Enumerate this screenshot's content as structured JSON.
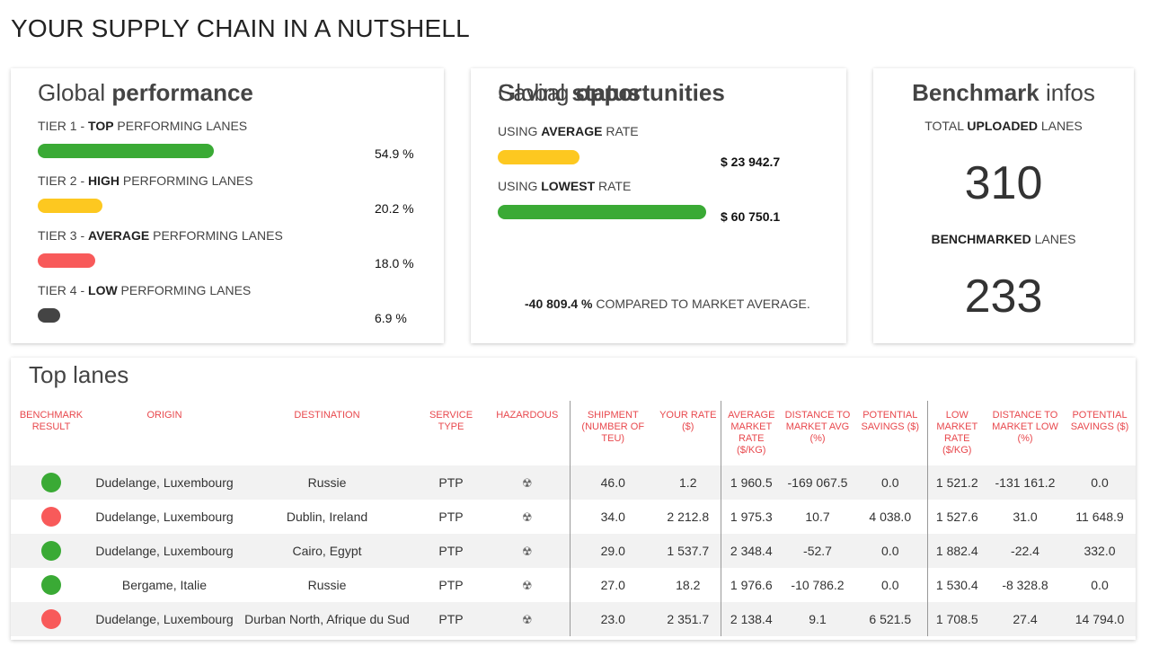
{
  "page_title": "YOUR SUPPLY CHAIN IN A NUTSHELL",
  "colors": {
    "green": "#3aaa35",
    "yellow": "#fdc820",
    "red": "#f85a5a",
    "dark": "#444444",
    "header_red": "#e8484d"
  },
  "performance": {
    "title_light": "Global ",
    "title_bold": "performance",
    "tiers": [
      {
        "prefix": "TIER 1 - ",
        "bold": "TOP",
        "suffix": " PERFORMING LANES",
        "value": "54.9 %",
        "level": 54.9,
        "color": "#3aaa35"
      },
      {
        "prefix": "TIER 2 - ",
        "bold": "HIGH",
        "suffix": " PERFORMING LANES",
        "value": "20.2 %",
        "level": 20.2,
        "color": "#fdc820"
      },
      {
        "prefix": "TIER 3 - ",
        "bold": "AVERAGE",
        "suffix": " PERFORMING LANES",
        "value": "18.0 %",
        "level": 18.0,
        "color": "#f85a5a"
      },
      {
        "prefix": "TIER 4 - ",
        "bold": "LOW",
        "suffix": " PERFORMING LANES",
        "value": "6.9 %",
        "level": 6.9,
        "color": "#444444"
      }
    ]
  },
  "saving": {
    "title_light": "Saving ",
    "title_bold": "opportunities",
    "rows": [
      {
        "prefix": "USING ",
        "bold": "AVERAGE",
        "suffix": " RATE",
        "value": "$ 23 942.7",
        "level": 39.4,
        "color": "#fdc820"
      },
      {
        "prefix": "USING ",
        "bold": "LOWEST",
        "suffix": " RATE",
        "value": "$ 60 750.1",
        "level": 100,
        "color": "#3aaa35"
      }
    ],
    "status_title_light": "Global ",
    "status_title_bold": "status",
    "status_value": "-40 809.4 %",
    "status_text": " COMPARED TO MARKET AVERAGE."
  },
  "benchmark": {
    "title_bold": "Benchmark",
    "title_light": " infos",
    "uploaded_prefix": "TOTAL ",
    "uploaded_bold": "UPLOADED",
    "uploaded_suffix": " LANES",
    "uploaded_value": "310",
    "benchmarked_bold": "BENCHMARKED",
    "benchmarked_suffix": " LANES",
    "benchmarked_value": "233"
  },
  "lanes": {
    "title": "Top lanes",
    "headers": [
      "BENCHMARK RESULT",
      "ORIGIN",
      "DESTINATION",
      "SERVICE TYPE",
      "HAZARDOUS",
      "SHIPMENT (NUMBER OF TEU)",
      "YOUR RATE ($)",
      "AVERAGE MARKET RATE ($/KG)",
      "DISTANCE TO MARKET AVG (%)",
      "POTENTIAL SAVINGS ($)",
      "LOW MARKET RATE ($/KG)",
      "DISTANCE TO MARKET LOW (%)",
      "POTENTIAL SAVINGS ($)"
    ],
    "hazard_icon": "radiation-icon",
    "hazard_glyph": "☢",
    "rows": [
      {
        "result": "green",
        "origin": "Dudelange, Luxembourg",
        "destination": "Russie",
        "service": "PTP",
        "shipment": "46.0",
        "rate": "1.2",
        "avg_rate": "1 960.5",
        "dist_avg": "-169 067.5",
        "sav_avg": "0.0",
        "low_rate": "1 521.2",
        "dist_low": "-131 161.2",
        "sav_low": "0.0"
      },
      {
        "result": "red",
        "origin": "Dudelange, Luxembourg",
        "destination": "Dublin, Ireland",
        "service": "PTP",
        "shipment": "34.0",
        "rate": "2 212.8",
        "avg_rate": "1 975.3",
        "dist_avg": "10.7",
        "sav_avg": "4 038.0",
        "low_rate": "1 527.6",
        "dist_low": "31.0",
        "sav_low": "11 648.9"
      },
      {
        "result": "green",
        "origin": "Dudelange, Luxembourg",
        "destination": "Cairo, Egypt",
        "service": "PTP",
        "shipment": "29.0",
        "rate": "1 537.7",
        "avg_rate": "2 348.4",
        "dist_avg": "-52.7",
        "sav_avg": "0.0",
        "low_rate": "1 882.4",
        "dist_low": "-22.4",
        "sav_low": "332.0"
      },
      {
        "result": "green",
        "origin": "Bergame, Italie",
        "destination": "Russie",
        "service": "PTP",
        "shipment": "27.0",
        "rate": "18.2",
        "avg_rate": "1 976.6",
        "dist_avg": "-10 786.2",
        "sav_avg": "0.0",
        "low_rate": "1 530.4",
        "dist_low": "-8 328.8",
        "sav_low": "0.0"
      },
      {
        "result": "red",
        "origin": "Dudelange, Luxembourg",
        "destination": "Durban North, Afrique du Sud",
        "service": "PTP",
        "shipment": "23.0",
        "rate": "2 351.7",
        "avg_rate": "2 138.4",
        "dist_avg": "9.1",
        "sav_avg": "6 521.5",
        "low_rate": "1 708.5",
        "dist_low": "27.4",
        "sav_low": "14 794.0"
      }
    ]
  }
}
